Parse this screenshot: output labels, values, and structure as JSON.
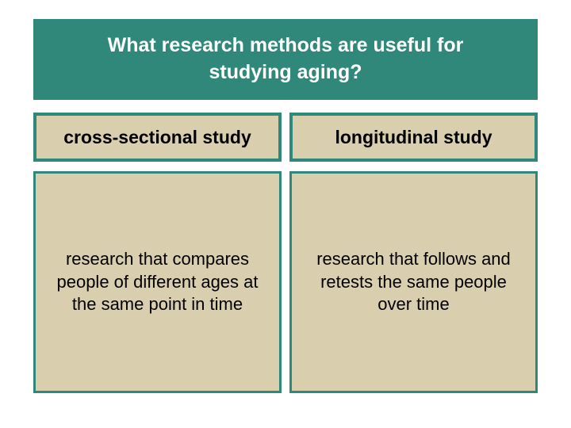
{
  "colors": {
    "teal": "#2f887a",
    "tan": "#d9cfae",
    "white": "#ffffff",
    "black": "#000000"
  },
  "title": "What research methods are useful for studying aging?",
  "columns": [
    {
      "header": "cross-sectional study",
      "body": "research that compares people of different ages at the same point in time"
    },
    {
      "header": "longitudinal study",
      "body": "research that follows and retests the same people over time"
    }
  ]
}
